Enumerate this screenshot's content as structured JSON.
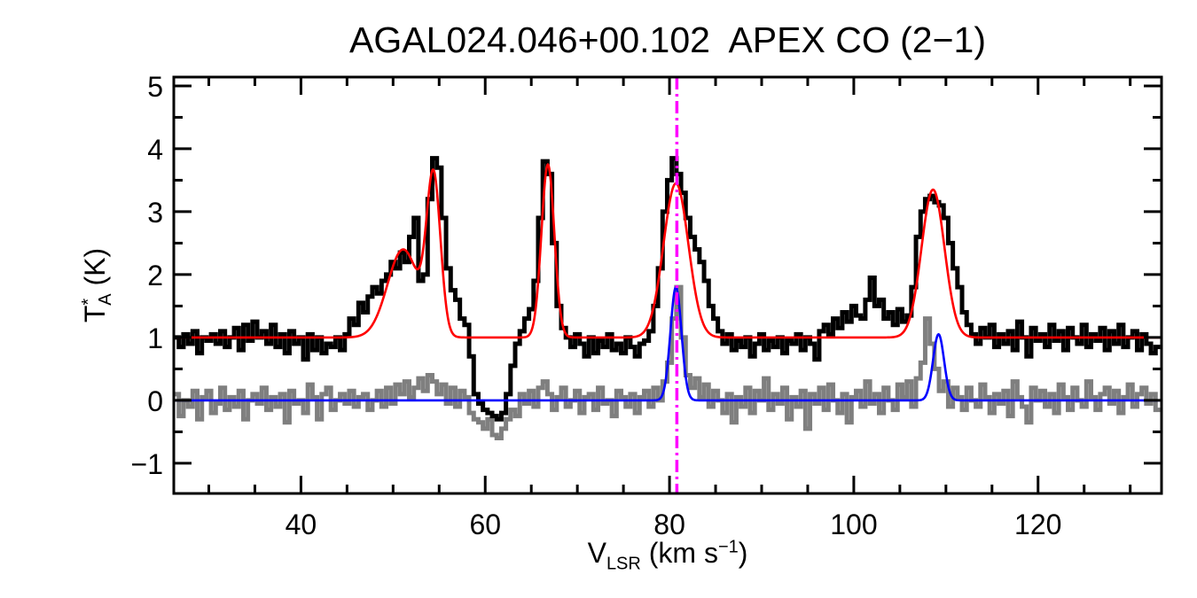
{
  "chart_data": {
    "type": "line",
    "title": "AGAL024.046+00.102  APEX CO (2−1)",
    "xlabel": {
      "main": "V",
      "sub": "LSR",
      "rest": " (km s",
      "sup": "−1",
      "end": ")"
    },
    "ylabel": {
      "main": "T",
      "sup": "*",
      "sub": "A",
      "rest": " (K)"
    },
    "xlim": [
      26.2,
      133.4
    ],
    "ylim": [
      -1.48,
      5.14
    ],
    "xticks": [
      40,
      60,
      80,
      100,
      120
    ],
    "yticks": [
      -1,
      0,
      1,
      2,
      3,
      4,
      5
    ],
    "xtick_labels": [
      "40",
      "60",
      "80",
      "100",
      "120"
    ],
    "ytick_labels": [
      "−1",
      "0",
      "1",
      "2",
      "3",
      "4",
      "5"
    ],
    "x_minor_step": 5,
    "y_minor_step": 0.5,
    "grid": false,
    "reference_line": {
      "x": 80.8,
      "style": "dash-dot",
      "color": "#ff00ff"
    },
    "series": [
      {
        "style": "step",
        "color": "#7f7f7f",
        "x_start": 26.5,
        "x_step": 0.5,
        "values": [
          0.1,
          -0.25,
          0.0,
          -0.1,
          0.15,
          -0.3,
          0.05,
          0.15,
          -0.2,
          -0.05,
          0.2,
          -0.15,
          0.05,
          -0.1,
          0.15,
          -0.3,
          0.0,
          0.1,
          -0.05,
          0.2,
          -0.15,
          0.05,
          -0.1,
          0.1,
          -0.35,
          0.15,
          -0.05,
          0.0,
          -0.2,
          0.25,
          0.05,
          -0.3,
          0.1,
          0.2,
          -0.15,
          0.0,
          0.1,
          -0.05,
          0.15,
          -0.1,
          0.05,
          0.1,
          -0.15,
          0.0,
          0.15,
          -0.1,
          0.2,
          -0.05,
          0.25,
          0.1,
          0.3,
          0.05,
          0.2,
          0.35,
          0.15,
          0.4,
          0.3,
          0.1,
          0.25,
          -0.05,
          0.2,
          -0.1,
          0.15,
          0.05,
          -0.2,
          -0.3,
          -0.35,
          -0.45,
          -0.3,
          -0.55,
          -0.6,
          -0.45,
          -0.3,
          -0.15,
          -0.25,
          0.1,
          -0.05,
          0.15,
          -0.1,
          0.2,
          0.3,
          0.1,
          -0.15,
          0.05,
          0.2,
          -0.1,
          0.0,
          0.15,
          -0.2,
          0.05,
          0.1,
          -0.15,
          0.2,
          -0.05,
          0.0,
          -0.25,
          0.15,
          0.05,
          -0.1,
          0.1,
          -0.2,
          0.05,
          0.15,
          -0.1,
          0.2,
          0.0,
          0.3,
          0.6,
          1.3,
          1.8,
          1.0,
          0.4,
          0.2,
          0.35,
          0.05,
          0.25,
          -0.1,
          0.15,
          0.0,
          -0.2,
          0.1,
          -0.35,
          0.05,
          -0.1,
          0.2,
          -0.2,
          0.15,
          0.0,
          0.35,
          -0.15,
          0.1,
          -0.05,
          0.2,
          -0.3,
          0.05,
          -0.1,
          0.15,
          -0.45,
          0.1,
          -0.05,
          0.2,
          -0.15,
          0.25,
          0.0,
          -0.2,
          0.1,
          -0.35,
          0.05,
          0.15,
          -0.1,
          0.3,
          -0.05,
          0.1,
          -0.2,
          0.2,
          0.0,
          -0.15,
          0.25,
          0.05,
          0.3,
          -0.1,
          0.35,
          0.6,
          1.3,
          0.9,
          0.5,
          0.15,
          0.3,
          -0.1,
          0.2,
          0.05,
          -0.15,
          0.2,
          0.0,
          -0.1,
          0.25,
          0.05,
          -0.2,
          0.1,
          -0.05,
          0.15,
          -0.25,
          0.3,
          0.05,
          -0.1,
          -0.35,
          0.2,
          0.0,
          0.15,
          -0.1,
          0.1,
          -0.2,
          0.25,
          0.05,
          -0.15,
          0.2,
          0.0,
          -0.1,
          0.3,
          0.05,
          -0.15,
          0.1,
          0.2,
          -0.05,
          0.15,
          -0.2,
          0.05,
          0.25,
          -0.1,
          0.1,
          0.2,
          -0.05,
          0.1,
          -0.15
        ]
      },
      {
        "style": "step",
        "color": "#000000",
        "x_start": 26.5,
        "x_step": 0.5,
        "values": [
          1.0,
          0.85,
          1.05,
          0.9,
          1.1,
          0.75,
          1.0,
          0.95,
          1.05,
          0.9,
          1.1,
          0.85,
          1.0,
          1.15,
          0.8,
          1.2,
          0.95,
          1.25,
          1.0,
          1.1,
          0.9,
          1.2,
          0.85,
          1.05,
          0.75,
          1.1,
          0.9,
          1.0,
          0.65,
          1.05,
          0.8,
          1.0,
          0.75,
          0.9,
          0.85,
          1.0,
          0.8,
          1.05,
          1.3,
          1.2,
          1.55,
          1.4,
          1.65,
          1.8,
          1.7,
          1.9,
          2.0,
          2.2,
          2.1,
          2.35,
          2.2,
          2.6,
          2.9,
          1.9,
          2.0,
          3.2,
          3.85,
          3.7,
          2.9,
          2.1,
          1.75,
          1.6,
          1.3,
          1.2,
          0.7,
          0.1,
          -0.05,
          -0.15,
          -0.2,
          -0.25,
          -0.3,
          -0.2,
          0.1,
          0.55,
          0.9,
          1.1,
          1.3,
          1.45,
          1.9,
          2.9,
          3.8,
          3.6,
          2.5,
          1.5,
          1.15,
          1.0,
          0.85,
          1.05,
          0.9,
          0.7,
          1.0,
          0.75,
          0.95,
          0.85,
          1.05,
          0.8,
          0.9,
          0.75,
          1.0,
          0.85,
          0.7,
          0.9,
          0.95,
          1.1,
          1.5,
          2.1,
          3.0,
          3.5,
          3.85,
          3.6,
          3.3,
          2.9,
          2.6,
          2.4,
          2.2,
          1.9,
          1.5,
          1.3,
          1.1,
          0.9,
          1.05,
          0.8,
          0.95,
          0.85,
          1.0,
          0.7,
          0.9,
          1.05,
          0.8,
          0.95,
          0.85,
          1.0,
          0.75,
          0.95,
          0.9,
          1.05,
          0.8,
          1.0,
          0.9,
          0.65,
          1.1,
          1.2,
          1.05,
          1.3,
          1.15,
          1.4,
          1.25,
          1.5,
          1.35,
          1.3,
          1.6,
          1.95,
          1.5,
          1.6,
          1.3,
          1.4,
          1.2,
          1.45,
          1.25,
          1.35,
          1.8,
          2.6,
          3.0,
          3.2,
          3.25,
          3.15,
          3.1,
          2.9,
          2.5,
          2.1,
          1.8,
          1.4,
          1.2,
          1.05,
          0.9,
          1.15,
          1.0,
          1.2,
          0.85,
          1.05,
          0.9,
          1.1,
          0.8,
          1.25,
          1.0,
          0.7,
          1.15,
          0.95,
          1.05,
          0.85,
          1.2,
          0.95,
          1.1,
          0.8,
          1.15,
          1.0,
          0.9,
          1.2,
          0.85,
          1.05,
          0.95,
          1.15,
          0.8,
          1.1,
          0.9,
          1.2,
          0.85,
          1.0,
          1.1,
          0.8,
          1.05,
          0.9,
          0.75,
          0.85
        ]
      }
    ],
    "fits": [
      {
        "color": "#ff0000",
        "baseline": 1.0,
        "gaussians": [
          {
            "amplitude": 1.4,
            "center": 51.1,
            "sigma": 1.7
          },
          {
            "amplitude": 2.45,
            "center": 54.4,
            "sigma": 0.75
          },
          {
            "amplitude": 2.75,
            "center": 66.8,
            "sigma": 0.7
          },
          {
            "amplitude": 2.45,
            "center": 80.7,
            "sigma": 1.35
          },
          {
            "amplitude": 2.35,
            "center": 108.6,
            "sigma": 1.25
          }
        ]
      },
      {
        "color": "#0000ff",
        "baseline": 0.0,
        "gaussians": [
          {
            "amplitude": 1.8,
            "center": 80.7,
            "sigma": 0.6
          },
          {
            "amplitude": 1.05,
            "center": 109.2,
            "sigma": 0.6
          }
        ]
      }
    ]
  }
}
